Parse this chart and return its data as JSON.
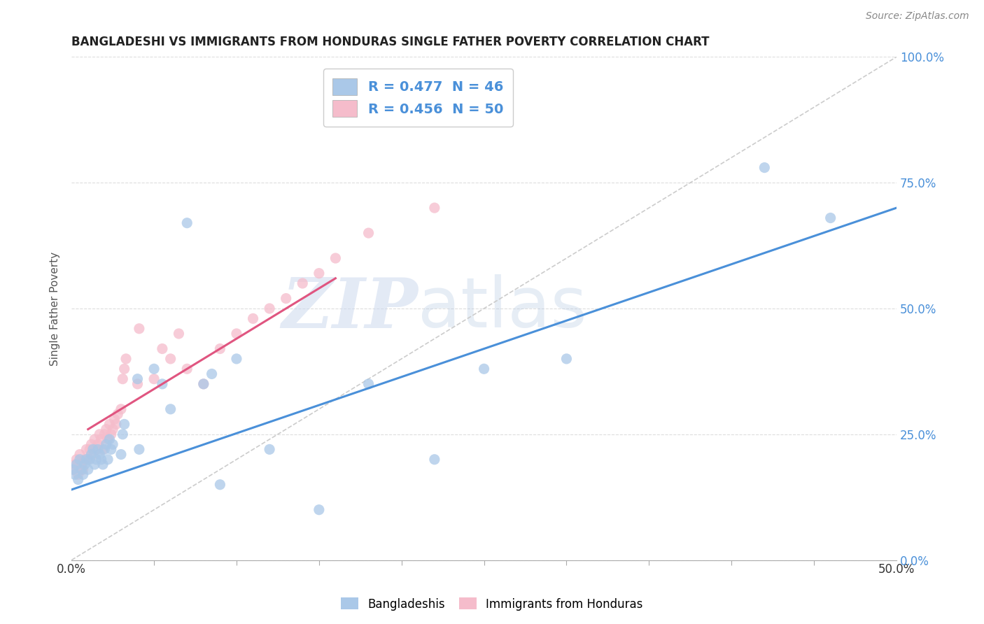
{
  "title": "BANGLADESHI VS IMMIGRANTS FROM HONDURAS SINGLE FATHER POVERTY CORRELATION CHART",
  "source": "Source: ZipAtlas.com",
  "ylabel": "Single Father Poverty",
  "legend_label1": "R = 0.477  N = 46",
  "legend_label2": "R = 0.456  N = 50",
  "legend_color1": "#aac8e8",
  "legend_color2": "#f5bccb",
  "scatter_color1": "#aac8e8",
  "scatter_color2": "#f5bccb",
  "line_color1": "#4a90d9",
  "line_color2": "#e05580",
  "diagonal_color": "#cccccc",
  "footer_label1": "Bangladeshis",
  "footer_label2": "Immigrants from Honduras",
  "xlim": [
    0.0,
    0.5
  ],
  "ylim": [
    0.0,
    1.0
  ],
  "blue_line_x0": 0.0,
  "blue_line_y0": 0.14,
  "blue_line_x1": 0.5,
  "blue_line_y1": 0.7,
  "pink_line_x0": 0.01,
  "pink_line_y0": 0.26,
  "pink_line_x1": 0.16,
  "pink_line_y1": 0.56,
  "bangladeshi_x": [
    0.001,
    0.002,
    0.003,
    0.004,
    0.005,
    0.006,
    0.007,
    0.008,
    0.009,
    0.01,
    0.011,
    0.012,
    0.013,
    0.014,
    0.015,
    0.016,
    0.017,
    0.018,
    0.019,
    0.02,
    0.021,
    0.022,
    0.023,
    0.024,
    0.025,
    0.03,
    0.031,
    0.032,
    0.04,
    0.041,
    0.05,
    0.055,
    0.06,
    0.07,
    0.08,
    0.085,
    0.09,
    0.1,
    0.12,
    0.15,
    0.18,
    0.22,
    0.25,
    0.3,
    0.42,
    0.46
  ],
  "bangladeshi_y": [
    0.18,
    0.17,
    0.19,
    0.16,
    0.2,
    0.18,
    0.17,
    0.19,
    0.2,
    0.18,
    0.2,
    0.21,
    0.22,
    0.19,
    0.2,
    0.22,
    0.21,
    0.2,
    0.19,
    0.22,
    0.23,
    0.2,
    0.24,
    0.22,
    0.23,
    0.21,
    0.25,
    0.27,
    0.36,
    0.22,
    0.38,
    0.35,
    0.3,
    0.67,
    0.35,
    0.37,
    0.15,
    0.4,
    0.22,
    0.1,
    0.35,
    0.2,
    0.38,
    0.4,
    0.78,
    0.68
  ],
  "honduras_x": [
    0.001,
    0.002,
    0.003,
    0.004,
    0.005,
    0.006,
    0.007,
    0.008,
    0.009,
    0.01,
    0.011,
    0.012,
    0.013,
    0.014,
    0.015,
    0.016,
    0.017,
    0.018,
    0.019,
    0.02,
    0.021,
    0.022,
    0.023,
    0.024,
    0.025,
    0.026,
    0.027,
    0.028,
    0.03,
    0.031,
    0.032,
    0.033,
    0.04,
    0.041,
    0.05,
    0.055,
    0.06,
    0.065,
    0.07,
    0.08,
    0.09,
    0.1,
    0.11,
    0.12,
    0.13,
    0.14,
    0.15,
    0.16,
    0.18,
    0.22
  ],
  "honduras_y": [
    0.18,
    0.19,
    0.2,
    0.17,
    0.21,
    0.19,
    0.18,
    0.2,
    0.22,
    0.2,
    0.22,
    0.23,
    0.21,
    0.24,
    0.22,
    0.23,
    0.25,
    0.24,
    0.22,
    0.25,
    0.26,
    0.24,
    0.27,
    0.25,
    0.26,
    0.28,
    0.27,
    0.29,
    0.3,
    0.36,
    0.38,
    0.4,
    0.35,
    0.46,
    0.36,
    0.42,
    0.4,
    0.45,
    0.38,
    0.35,
    0.42,
    0.45,
    0.48,
    0.5,
    0.52,
    0.55,
    0.57,
    0.6,
    0.65,
    0.7
  ]
}
